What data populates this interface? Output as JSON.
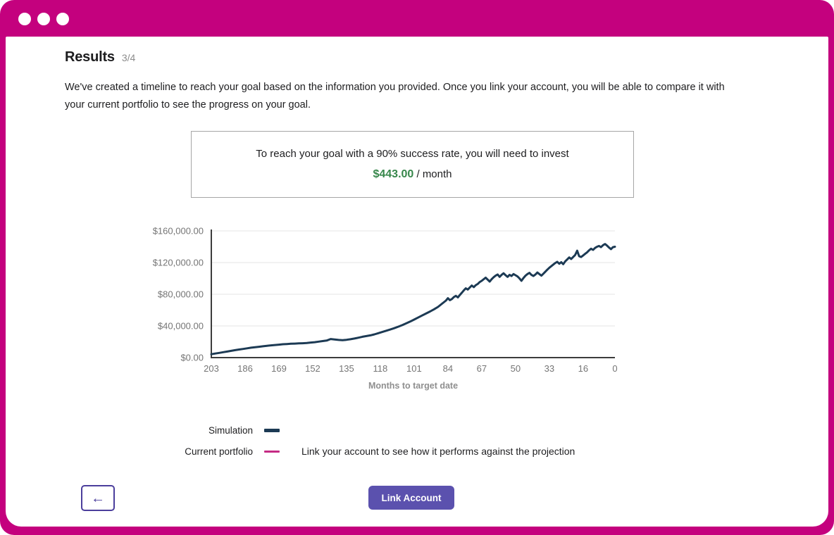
{
  "window": {
    "frame_color": "#c4017e",
    "traffic_dots_count": 3
  },
  "header": {
    "title": "Results",
    "step": "3/4"
  },
  "intro_text": "We've created a timeline to reach your goal based on the information you provided. Once you link your account, you will be able to compare it with your current portfolio to see the progress on your goal.",
  "summary_box": {
    "line1": "To reach your goal with a 90% success rate, you will need to invest",
    "amount": "$443.00",
    "amount_suffix": " / month",
    "amount_color": "#37874b"
  },
  "chart_data": {
    "type": "line",
    "title": "",
    "xlabel": "Months to target date",
    "ylabel": "",
    "x_axis_reversed": true,
    "xlim": [
      203,
      0
    ],
    "ylim": [
      0,
      160000
    ],
    "grid": true,
    "x_ticks": [
      203,
      186,
      169,
      152,
      135,
      118,
      101,
      84,
      67,
      50,
      33,
      16,
      0
    ],
    "y_ticks": [
      {
        "value": 160000,
        "label": "$160,000.00"
      },
      {
        "value": 120000,
        "label": "$120,000.00"
      },
      {
        "value": 80000,
        "label": "$80,000.00"
      },
      {
        "value": 40000,
        "label": "$40,000.00"
      },
      {
        "value": 0,
        "label": "$0.00"
      }
    ],
    "legend_position": "below",
    "series": [
      {
        "name": "Simulation",
        "color": "#1c3a54",
        "points": [
          [
            203,
            4300
          ],
          [
            201,
            5200
          ],
          [
            199,
            6000
          ],
          [
            197,
            6800
          ],
          [
            195,
            7600
          ],
          [
            193,
            8500
          ],
          [
            191,
            9400
          ],
          [
            189,
            10200
          ],
          [
            187,
            10900
          ],
          [
            185,
            11700
          ],
          [
            183,
            12500
          ],
          [
            181,
            13100
          ],
          [
            179,
            13700
          ],
          [
            177,
            14300
          ],
          [
            175,
            14900
          ],
          [
            173,
            15500
          ],
          [
            171,
            15900
          ],
          [
            169,
            16400
          ],
          [
            167,
            16900
          ],
          [
            165,
            17200
          ],
          [
            163,
            17500
          ],
          [
            161,
            17700
          ],
          [
            159,
            18000
          ],
          [
            157,
            18100
          ],
          [
            155,
            18400
          ],
          [
            153,
            19000
          ],
          [
            151,
            19500
          ],
          [
            149,
            20200
          ],
          [
            147,
            20900
          ],
          [
            145,
            21500
          ],
          [
            143,
            23500
          ],
          [
            141,
            22900
          ],
          [
            139,
            22300
          ],
          [
            137,
            22000
          ],
          [
            135,
            22500
          ],
          [
            133,
            23200
          ],
          [
            131,
            24100
          ],
          [
            129,
            25200
          ],
          [
            127,
            26300
          ],
          [
            125,
            27200
          ],
          [
            123,
            28100
          ],
          [
            121,
            29300
          ],
          [
            119,
            30800
          ],
          [
            117,
            32400
          ],
          [
            115,
            34000
          ],
          [
            113,
            35500
          ],
          [
            111,
            37200
          ],
          [
            109,
            39000
          ],
          [
            107,
            41000
          ],
          [
            105,
            43200
          ],
          [
            103,
            45500
          ],
          [
            101,
            48000
          ],
          [
            99,
            50600
          ],
          [
            97,
            53200
          ],
          [
            95,
            55600
          ],
          [
            93,
            58200
          ],
          [
            91,
            61000
          ],
          [
            89,
            64000
          ],
          [
            87,
            68000
          ],
          [
            85,
            72000
          ],
          [
            84,
            75000
          ],
          [
            83,
            72500
          ],
          [
            82,
            74000
          ],
          [
            81,
            76500
          ],
          [
            80,
            78000
          ],
          [
            79,
            76000
          ],
          [
            78,
            79000
          ],
          [
            77,
            82000
          ],
          [
            76,
            85000
          ],
          [
            75,
            87500
          ],
          [
            74,
            86000
          ],
          [
            73,
            88500
          ],
          [
            72,
            91000
          ],
          [
            71,
            89000
          ],
          [
            70,
            91500
          ],
          [
            69,
            93000
          ],
          [
            68,
            95500
          ],
          [
            67,
            97000
          ],
          [
            66,
            99000
          ],
          [
            65,
            101000
          ],
          [
            64,
            98500
          ],
          [
            63,
            96000
          ],
          [
            62,
            99000
          ],
          [
            61,
            101500
          ],
          [
            60,
            103500
          ],
          [
            59,
            105000
          ],
          [
            58,
            102000
          ],
          [
            57,
            104500
          ],
          [
            56,
            106500
          ],
          [
            55,
            104000
          ],
          [
            54,
            102000
          ],
          [
            53,
            104500
          ],
          [
            52,
            103000
          ],
          [
            51,
            105500
          ],
          [
            50,
            104000
          ],
          [
            49,
            102500
          ],
          [
            48,
            100000
          ],
          [
            47,
            97000
          ],
          [
            46,
            100500
          ],
          [
            45,
            103500
          ],
          [
            44,
            105500
          ],
          [
            43,
            107000
          ],
          [
            42,
            104500
          ],
          [
            41,
            103000
          ],
          [
            40,
            105000
          ],
          [
            39,
            107500
          ],
          [
            38,
            105500
          ],
          [
            37,
            103500
          ],
          [
            36,
            106000
          ],
          [
            35,
            108500
          ],
          [
            34,
            111000
          ],
          [
            33,
            113500
          ],
          [
            32,
            115500
          ],
          [
            31,
            117500
          ],
          [
            30,
            119500
          ],
          [
            29,
            121000
          ],
          [
            28,
            118500
          ],
          [
            27,
            120500
          ],
          [
            26,
            118000
          ],
          [
            25,
            121500
          ],
          [
            24,
            124000
          ],
          [
            23,
            126500
          ],
          [
            22,
            124500
          ],
          [
            21,
            127000
          ],
          [
            20,
            129500
          ],
          [
            19,
            135000
          ],
          [
            18,
            128000
          ],
          [
            17,
            127000
          ],
          [
            16,
            129000
          ],
          [
            15,
            131000
          ],
          [
            14,
            133000
          ],
          [
            13,
            135500
          ],
          [
            12,
            137500
          ],
          [
            11,
            136000
          ],
          [
            10,
            138500
          ],
          [
            9,
            140000
          ],
          [
            8,
            141000
          ],
          [
            7,
            139500
          ],
          [
            6,
            142000
          ],
          [
            5,
            143500
          ],
          [
            4,
            141500
          ],
          [
            3,
            139000
          ],
          [
            2,
            137000
          ],
          [
            1,
            139500
          ],
          [
            0,
            140000
          ]
        ]
      },
      {
        "name": "Current portfolio",
        "color": "#c52b84",
        "points": []
      }
    ]
  },
  "legend": {
    "simulation_label": "Simulation",
    "portfolio_label": "Current portfolio",
    "portfolio_note": "Link your account to see how it performs against the projection"
  },
  "actions": {
    "back_icon": "←",
    "link_account_label": "Link Account"
  }
}
